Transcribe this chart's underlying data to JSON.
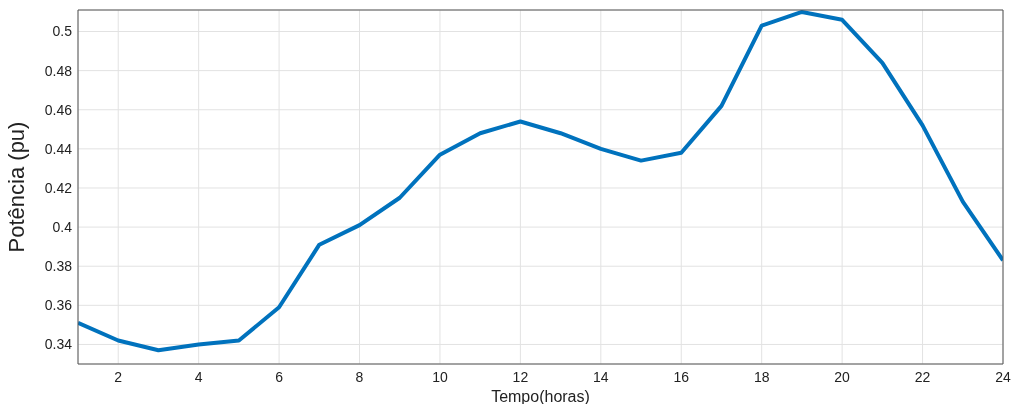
{
  "chart_data": {
    "type": "line",
    "xlabel": "Tempo(horas)",
    "ylabel": "Potência (pu)",
    "x": [
      1,
      2,
      3,
      4,
      5,
      6,
      7,
      8,
      9,
      10,
      11,
      12,
      13,
      14,
      15,
      16,
      17,
      18,
      19,
      20,
      21,
      22,
      23,
      24
    ],
    "series": [
      {
        "color": "#0072bd",
        "values": [
          0.351,
          0.342,
          0.337,
          0.34,
          0.342,
          0.359,
          0.391,
          0.401,
          0.415,
          0.437,
          0.448,
          0.454,
          0.448,
          0.44,
          0.434,
          0.438,
          0.462,
          0.503,
          0.51,
          0.506,
          0.484,
          0.452,
          0.413,
          0.383
        ]
      }
    ],
    "xlim": [
      1,
      24
    ],
    "xticks": [
      2,
      4,
      6,
      8,
      10,
      12,
      14,
      16,
      18,
      20,
      22,
      24
    ],
    "ylim": [
      0.33,
      0.511
    ],
    "yticks": [
      0.34,
      0.36,
      0.38,
      0.4,
      0.42,
      0.44,
      0.46,
      0.48,
      0.5
    ],
    "grid": true,
    "marker": "none",
    "line_style": "solid"
  }
}
